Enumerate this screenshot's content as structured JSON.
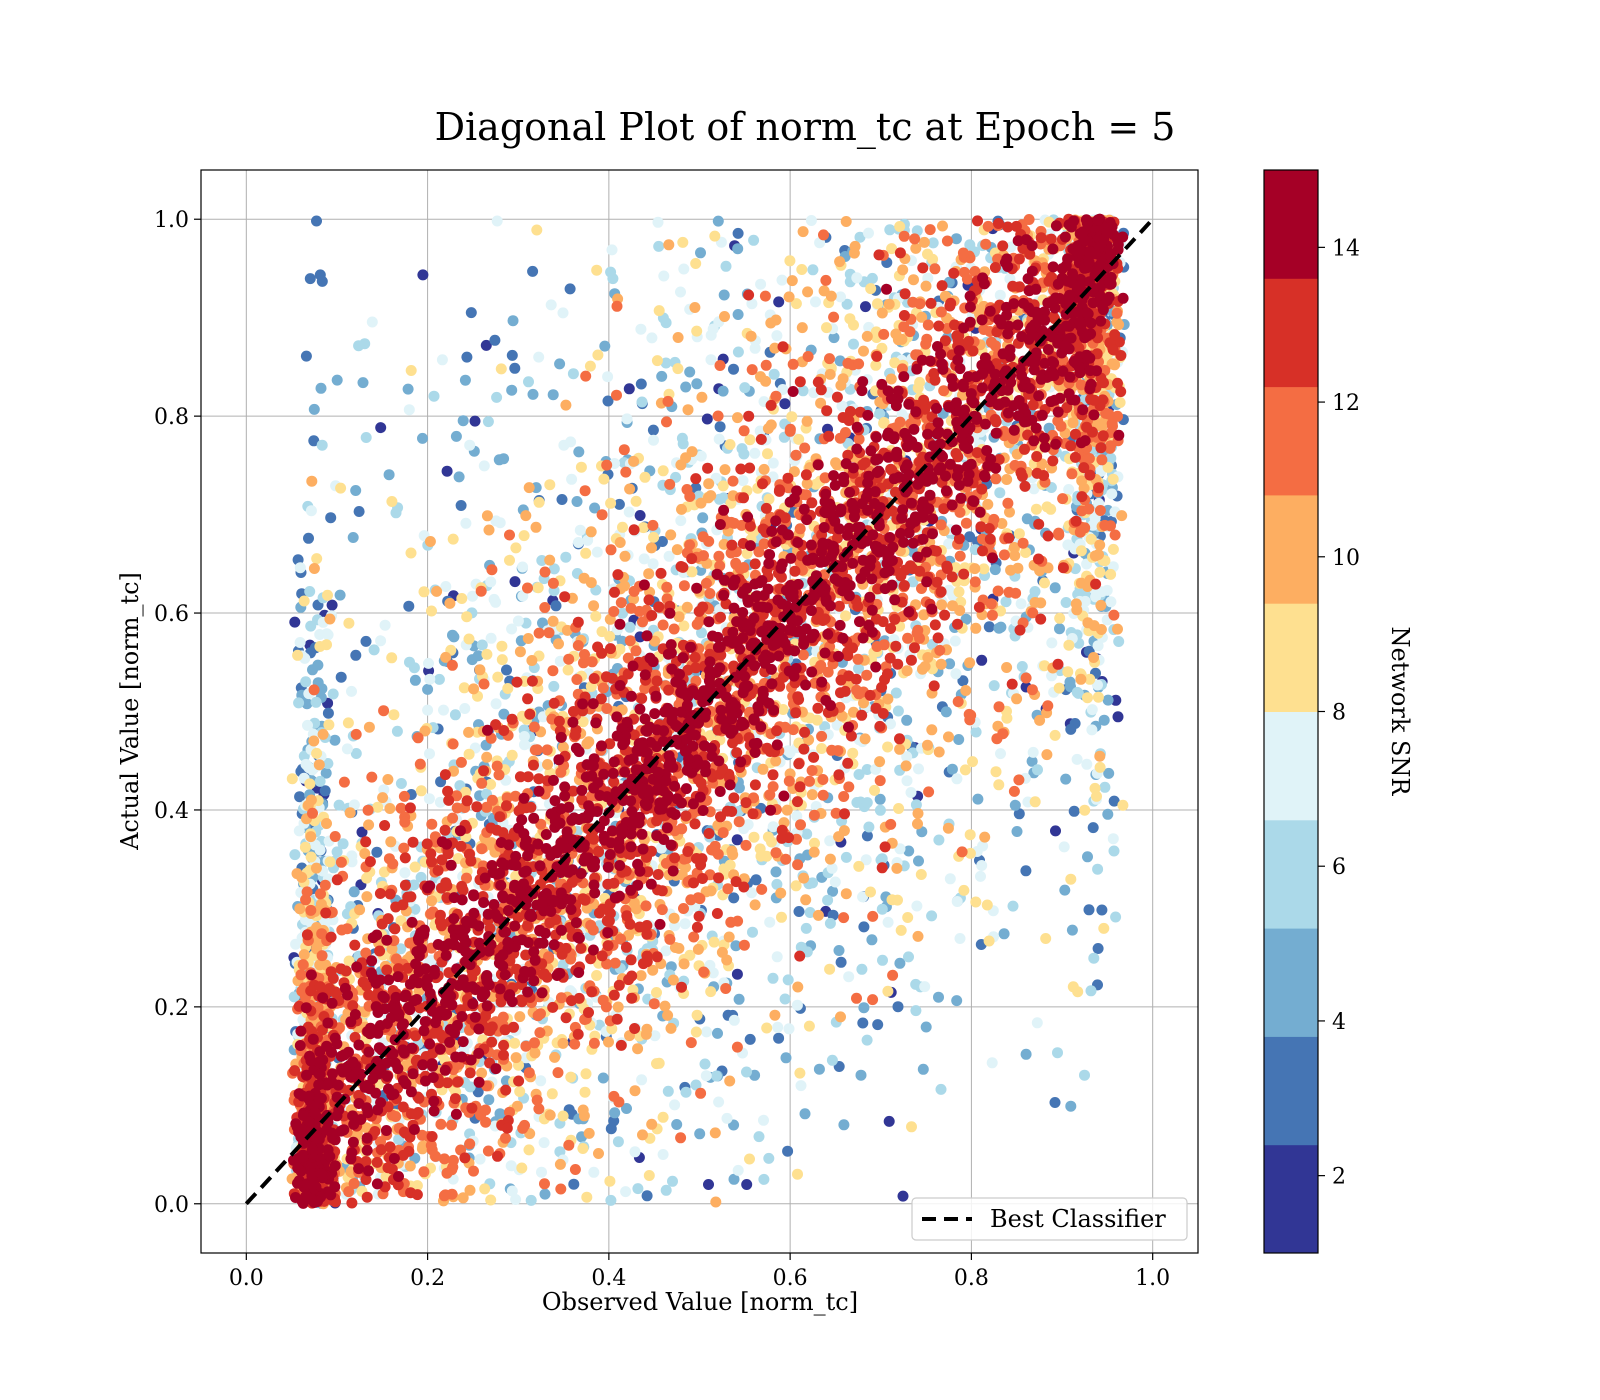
{
  "chart_data": {
    "type": "scatter",
    "title": "Diagonal Plot of norm_tc at Epoch = 5",
    "xlabel": "Observed Value [norm_tc]",
    "ylabel": "Actual Value [norm_tc]",
    "xlim": [
      -0.05,
      1.05
    ],
    "ylim": [
      -0.05,
      1.05
    ],
    "xticks": [
      "0.0",
      "0.2",
      "0.4",
      "0.6",
      "0.8",
      "1.0"
    ],
    "yticks": [
      "0.0",
      "0.2",
      "0.4",
      "0.6",
      "0.8",
      "1.0"
    ],
    "grid": true,
    "legend": {
      "location": "lower-right",
      "entries": [
        "Best Classifier"
      ]
    },
    "reference_line": {
      "name": "Best Classifier",
      "style": "dashed",
      "color": "#000000",
      "x": [
        0.0,
        1.0
      ],
      "y": [
        0.0,
        1.0
      ]
    },
    "colorbar": {
      "label": "Network SNR",
      "range": [
        1,
        15
      ],
      "ticks": [
        "2",
        "4",
        "6",
        "8",
        "10",
        "12",
        "14"
      ],
      "bins": 10,
      "colors": [
        "#313695",
        "#4575b4",
        "#74add1",
        "#abd9e9",
        "#e0f3f8",
        "#fee090",
        "#fdae61",
        "#f46d43",
        "#d73027",
        "#a50026"
      ]
    },
    "series_description_points": [
      {
        "x": 0.1,
        "y": 0.05,
        "snr": 15
      },
      {
        "x": 0.3,
        "y": 0.3,
        "snr": 15
      },
      {
        "x": 0.5,
        "y": 0.5,
        "snr": 15
      },
      {
        "x": 0.7,
        "y": 0.7,
        "snr": 15
      },
      {
        "x": 0.9,
        "y": 0.95,
        "snr": 15
      },
      {
        "x": 0.3,
        "y": 0.85,
        "snr": 3
      },
      {
        "x": 0.25,
        "y": 0.75,
        "snr": 5
      },
      {
        "x": 0.45,
        "y": 0.9,
        "snr": 7
      },
      {
        "x": 0.55,
        "y": 0.85,
        "snr": 10
      },
      {
        "x": 0.65,
        "y": 0.1,
        "snr": 5
      },
      {
        "x": 0.75,
        "y": 0.15,
        "snr": 3
      },
      {
        "x": 0.5,
        "y": 0.05,
        "snr": 9
      },
      {
        "x": 0.85,
        "y": 0.25,
        "snr": 3
      },
      {
        "x": 0.15,
        "y": 0.6,
        "snr": 8
      }
    ]
  }
}
